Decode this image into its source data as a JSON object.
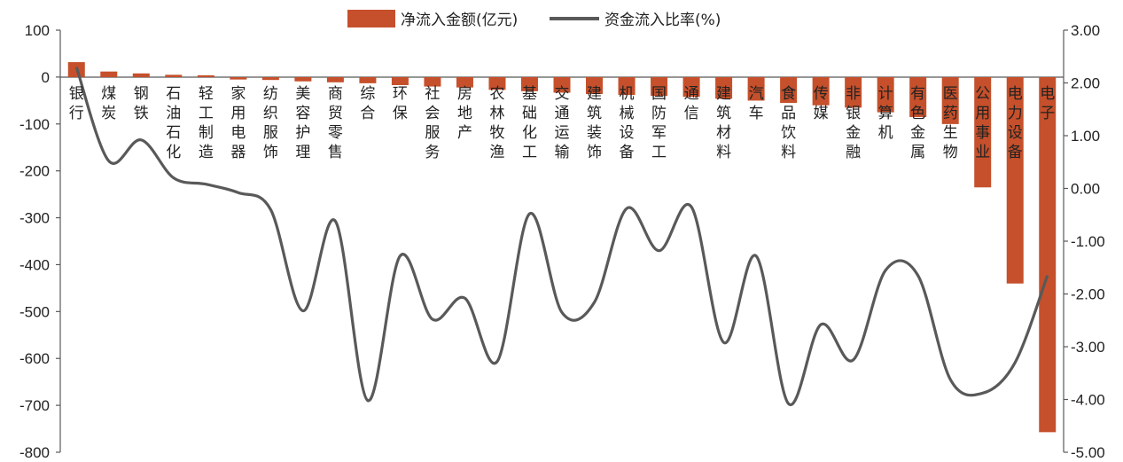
{
  "chart_data": {
    "type": "bar+line",
    "legend_position": "top-center",
    "grid": false,
    "categories": [
      "银行",
      "煤炭",
      "钢铁",
      "石油石化",
      "轻工制造",
      "家用电器",
      "纺织服饰",
      "美容护理",
      "商贸零售",
      "综合",
      "环保",
      "社会服务",
      "房地产",
      "农林牧渔",
      "基础化工",
      "交通运输",
      "建筑装饰",
      "机械设备",
      "国防军工",
      "通信",
      "建筑材料",
      "汽车",
      "食品饮料",
      "传媒",
      "非银金融",
      "计算机",
      "有色金属",
      "医药生物",
      "公用事业",
      "电力设备",
      "电子"
    ],
    "series": [
      {
        "name": "净流入金额(亿元)",
        "type": "bar",
        "axis": "left",
        "color": "#c5502b",
        "values": [
          32,
          12,
          8,
          5,
          4,
          -5,
          -6,
          -9,
          -11,
          -13,
          -17,
          -20,
          -22,
          -27,
          -30,
          -33,
          -36,
          -38,
          -40,
          -42,
          -46,
          -50,
          -55,
          -60,
          -65,
          -75,
          -85,
          -100,
          -235,
          -440,
          -757
        ]
      },
      {
        "name": "资金流入比率(%)",
        "type": "line",
        "axis": "right",
        "color": "#595959",
        "values": [
          2.3,
          0.52,
          0.92,
          0.2,
          0.08,
          -0.08,
          -0.4,
          -2.32,
          -0.62,
          -4.02,
          -1.28,
          -2.48,
          -2.08,
          -3.28,
          -0.48,
          -2.35,
          -2.16,
          -0.38,
          -1.18,
          -0.35,
          -2.92,
          -1.28,
          -4.08,
          -2.58,
          -3.25,
          -1.55,
          -1.65,
          -3.62,
          -3.88,
          -3.3,
          -1.65
        ]
      }
    ],
    "y_left": {
      "min": -800,
      "max": 100,
      "ticks": [
        "100",
        "0",
        "-100",
        "-200",
        "-300",
        "-400",
        "-500",
        "-600",
        "-700",
        "-800"
      ]
    },
    "y_right": {
      "min": -5,
      "max": 3,
      "ticks": [
        "3.00",
        "2.00",
        "1.00",
        "0.00",
        "-1.00",
        "-2.00",
        "-3.00",
        "-4.00",
        "-5.00"
      ]
    }
  }
}
